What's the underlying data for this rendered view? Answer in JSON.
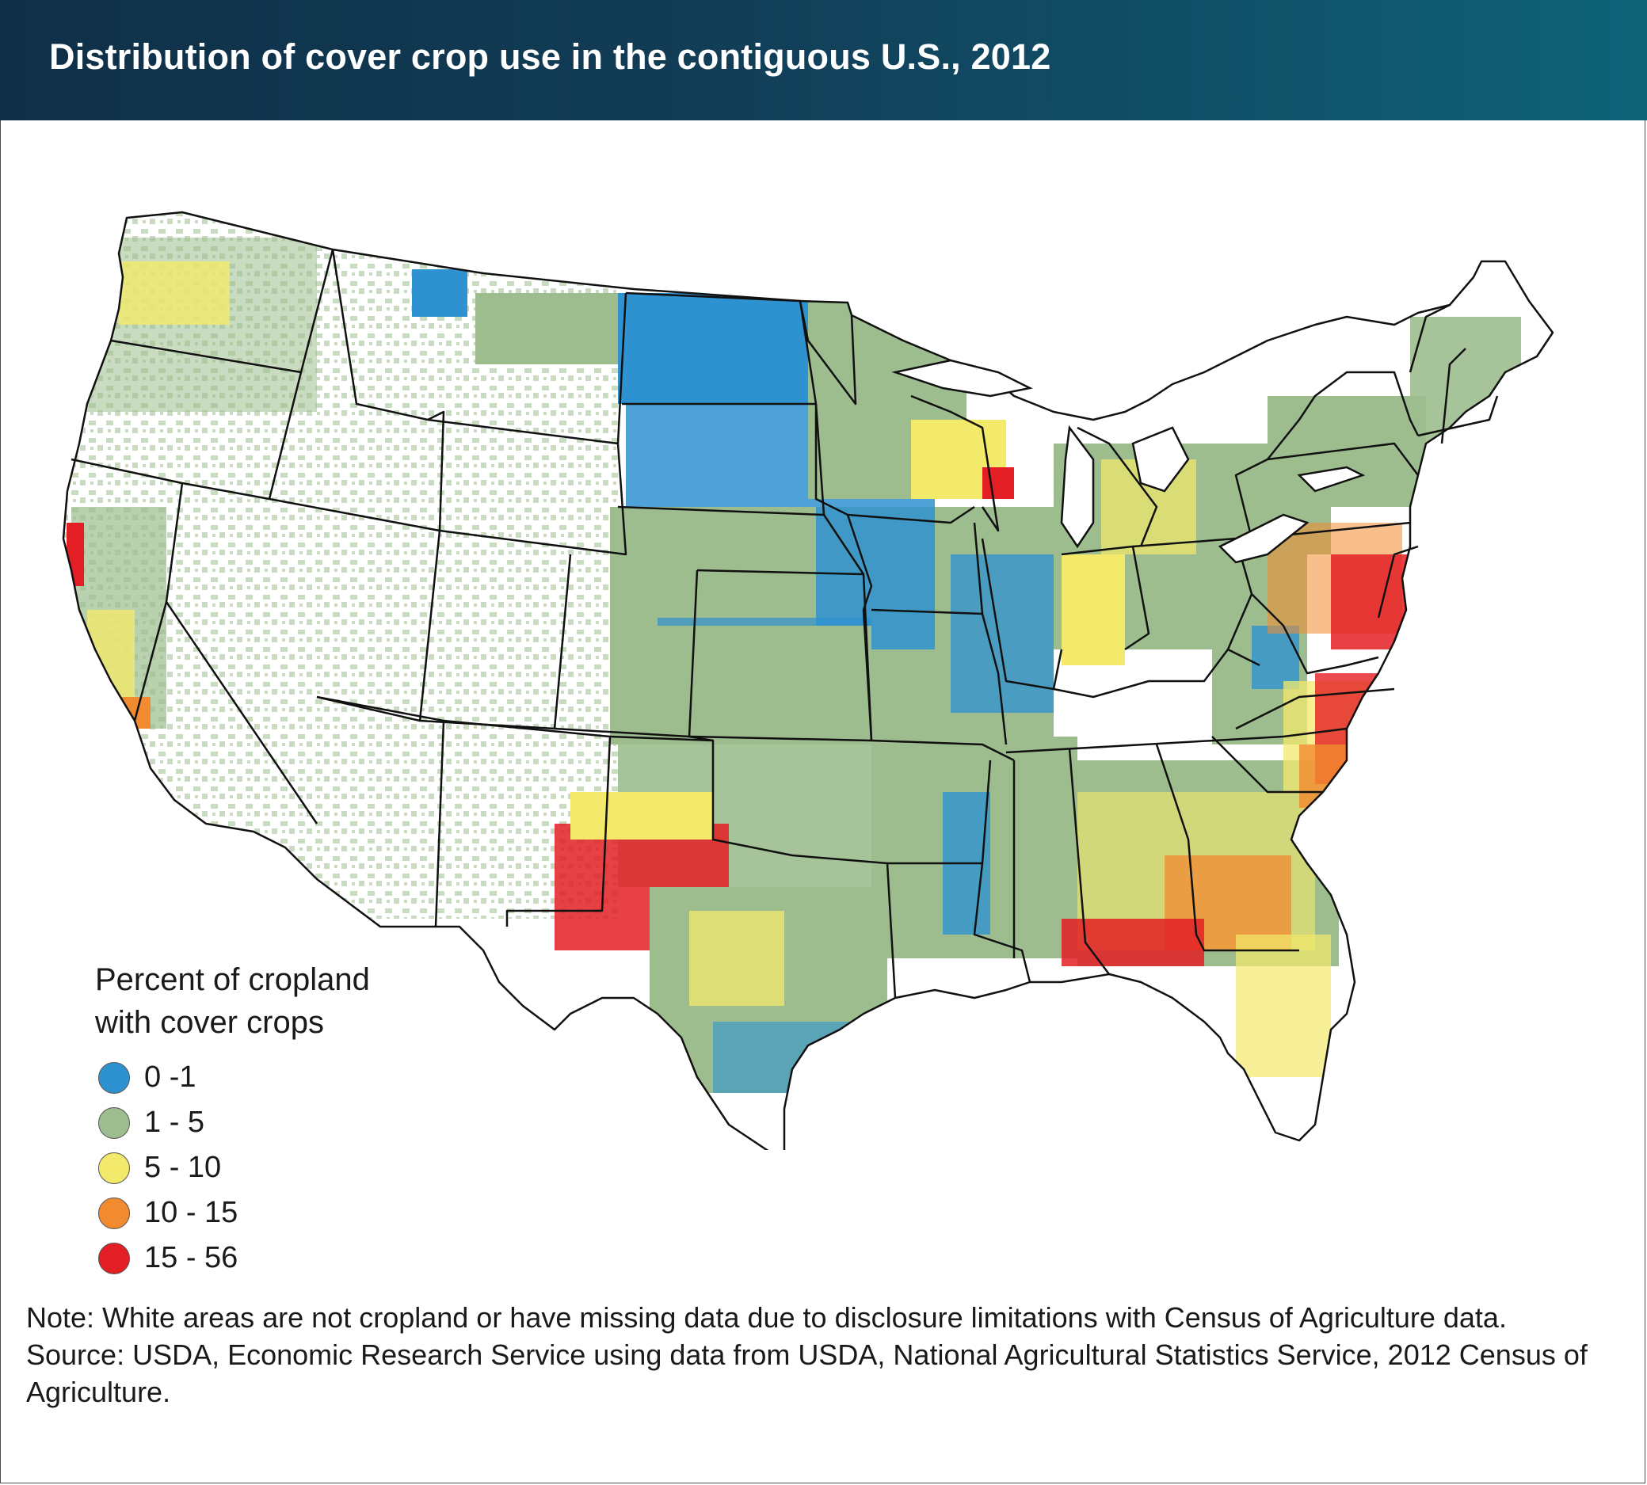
{
  "title": "Distribution of cover crop use in the contiguous U.S., 2012",
  "legend": {
    "title_line1": "Percent of cropland",
    "title_line2": "with cover crops",
    "items": [
      {
        "label": "0 -1",
        "color": "#2f92d0"
      },
      {
        "label": "1 - 5",
        "color": "#9dbd8e"
      },
      {
        "label": "5 - 10",
        "color": "#f3ea6c"
      },
      {
        "label": "10 - 15",
        "color": "#f28a30"
      },
      {
        "label": "15 - 56",
        "color": "#e31e24"
      }
    ]
  },
  "note": "Note: White areas are not cropland or have missing data due to disclosure limitations with Census of Agriculture data.",
  "source": "Source: USDA, Economic Research Service using data from USDA, National Agricultural Statistics Service, 2012 Census of Agriculture.",
  "colors": {
    "title_bar_start": "#0f2f47",
    "title_bar_end": "#0e6277",
    "state_border": "#111111"
  }
}
